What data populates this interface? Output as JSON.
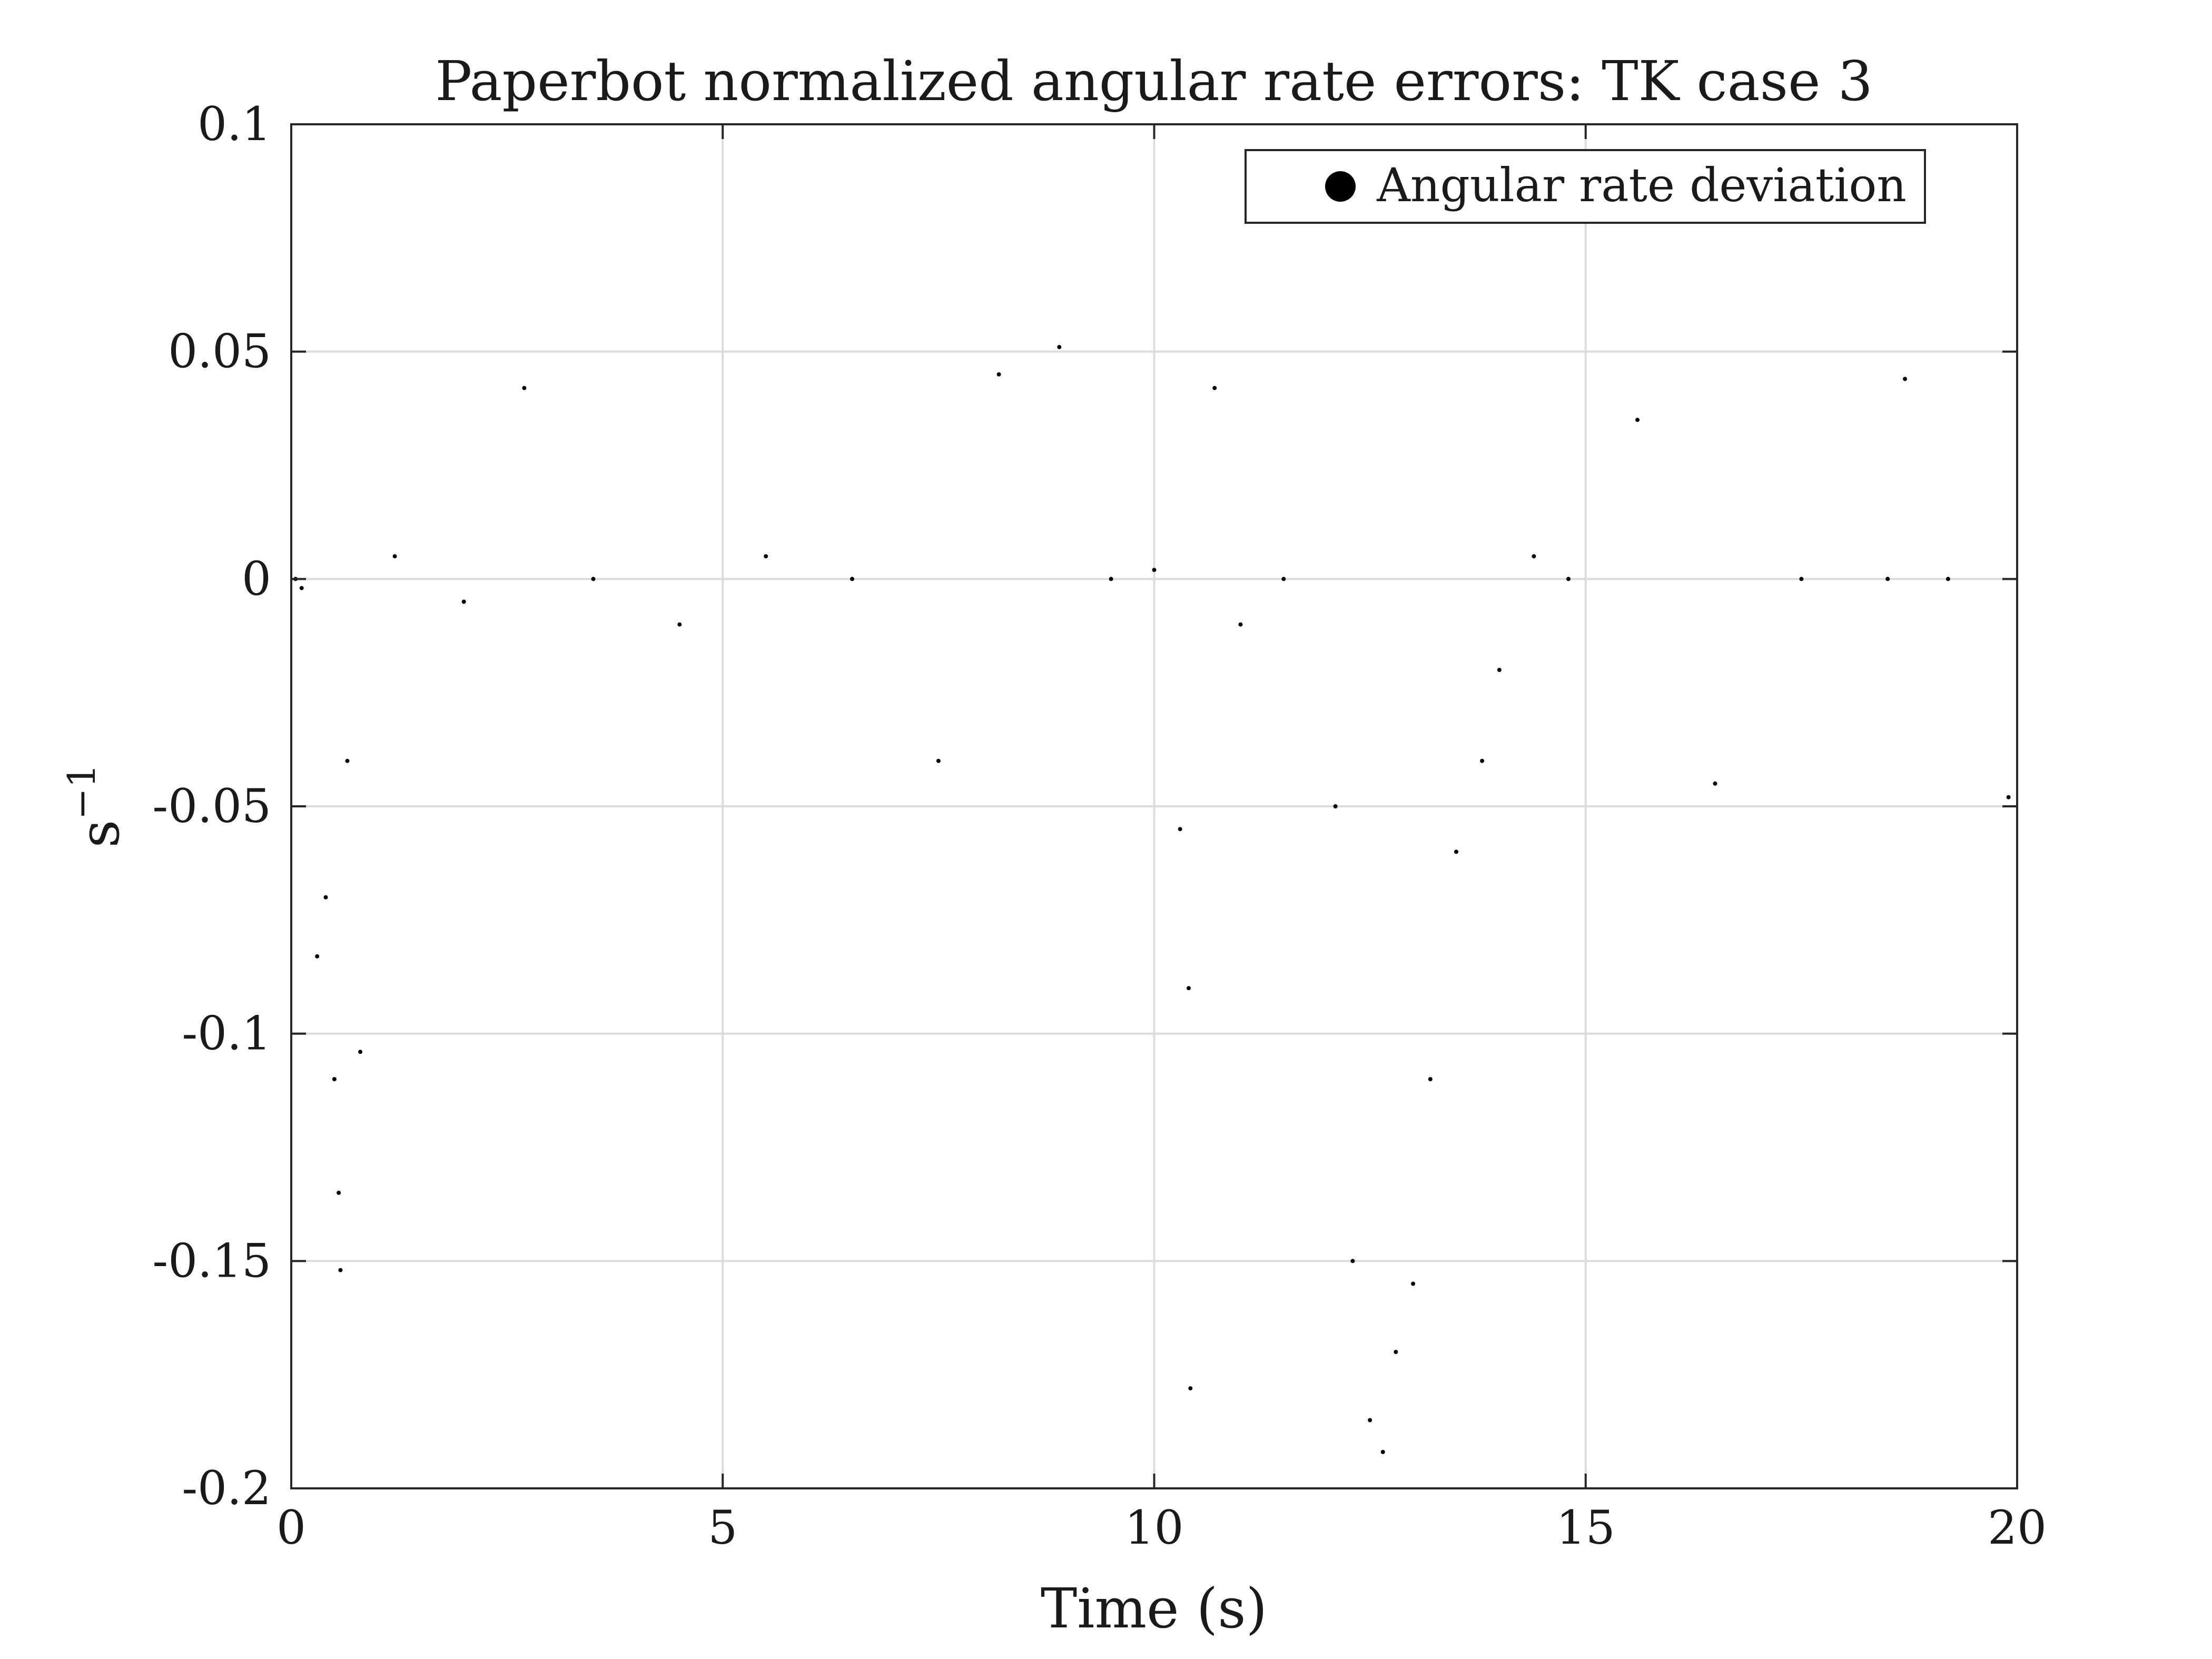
{
  "chart_data": {
    "type": "scatter",
    "title": "Paperbot normalized angular rate errors: TK case 3",
    "xlabel": "Time (s)",
    "ylabel": "s",
    "ylabel_superscript": "−1",
    "xlim": [
      0,
      20
    ],
    "ylim": [
      -0.2,
      0.1
    ],
    "x_ticks": [
      0,
      5,
      10,
      15,
      20
    ],
    "x_tick_labels": [
      "0",
      "5",
      "10",
      "15",
      "20"
    ],
    "y_ticks": [
      0.1,
      0.05,
      0,
      -0.05,
      -0.1,
      -0.15,
      -0.2
    ],
    "y_tick_labels": [
      "0.1",
      "0.05",
      "0",
      "-0.05",
      "-0.1",
      "-0.15",
      "-0.2"
    ],
    "grid": true,
    "legend_position": "top-right",
    "series": [
      {
        "name": "Angular rate deviation",
        "color": "#000000",
        "marker": "point",
        "points": [
          [
            0.05,
            0.0
          ],
          [
            0.12,
            -0.002
          ],
          [
            0.3,
            -0.083
          ],
          [
            0.4,
            -0.07
          ],
          [
            0.5,
            -0.11
          ],
          [
            0.55,
            -0.135
          ],
          [
            0.57,
            -0.152
          ],
          [
            0.65,
            -0.04
          ],
          [
            0.8,
            -0.104
          ],
          [
            1.2,
            0.005
          ],
          [
            2.0,
            -0.005
          ],
          [
            2.7,
            0.042
          ],
          [
            3.5,
            0.0
          ],
          [
            4.5,
            -0.01
          ],
          [
            5.5,
            0.005
          ],
          [
            6.5,
            0.0
          ],
          [
            7.5,
            -0.04
          ],
          [
            8.2,
            0.045
          ],
          [
            8.9,
            0.051
          ],
          [
            9.5,
            0.0
          ],
          [
            10.0,
            0.002
          ],
          [
            10.3,
            -0.055
          ],
          [
            10.4,
            -0.09
          ],
          [
            10.42,
            -0.178
          ],
          [
            10.7,
            0.042
          ],
          [
            11.0,
            -0.01
          ],
          [
            11.5,
            0.0
          ],
          [
            12.1,
            -0.05
          ],
          [
            12.3,
            -0.15
          ],
          [
            12.5,
            -0.185
          ],
          [
            12.65,
            -0.192
          ],
          [
            12.8,
            -0.17
          ],
          [
            13.0,
            -0.155
          ],
          [
            13.2,
            -0.11
          ],
          [
            13.5,
            -0.06
          ],
          [
            13.8,
            -0.04
          ],
          [
            14.0,
            -0.02
          ],
          [
            14.4,
            0.005
          ],
          [
            14.8,
            0.0
          ],
          [
            15.6,
            0.035
          ],
          [
            16.5,
            -0.045
          ],
          [
            17.5,
            0.0
          ],
          [
            18.5,
            0.0
          ],
          [
            18.7,
            0.044
          ],
          [
            19.2,
            0.0
          ],
          [
            19.9,
            -0.048
          ]
        ]
      }
    ]
  }
}
